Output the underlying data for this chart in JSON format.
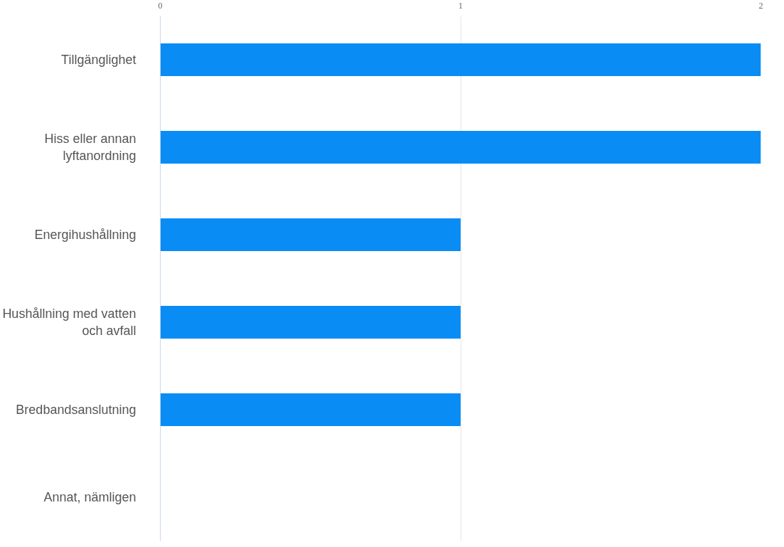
{
  "chart_data": {
    "type": "bar",
    "orientation": "horizontal",
    "categories": [
      "Tillgänglighet",
      "Hiss eller annan lyftanordning",
      "Energihushållning",
      "Hushållning med vatten och avfall",
      "Bredbandsanslutning",
      "Annat, nämligen"
    ],
    "values": [
      2,
      2,
      1,
      1,
      1,
      0
    ],
    "color": "#0a8cf5",
    "xlim": [
      0,
      2
    ],
    "xticks": [
      0,
      1,
      2
    ],
    "grid": "x"
  }
}
